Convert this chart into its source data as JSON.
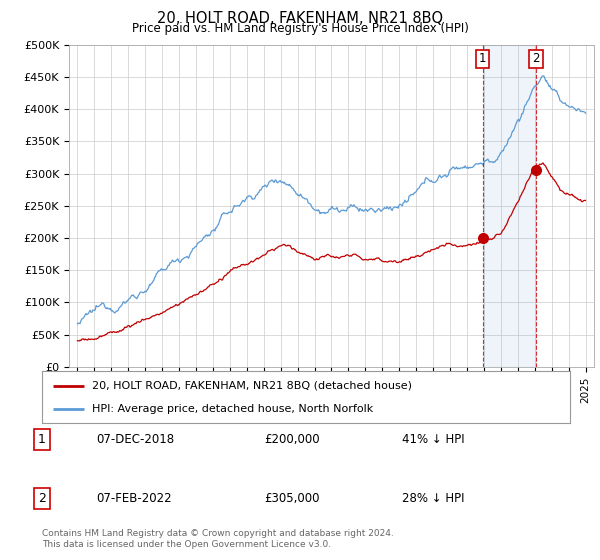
{
  "title": "20, HOLT ROAD, FAKENHAM, NR21 8BQ",
  "subtitle": "Price paid vs. HM Land Registry's House Price Index (HPI)",
  "ylim": [
    0,
    500000
  ],
  "yticks": [
    0,
    50000,
    100000,
    150000,
    200000,
    250000,
    300000,
    350000,
    400000,
    450000,
    500000
  ],
  "ytick_labels": [
    "£0",
    "£50K",
    "£100K",
    "£150K",
    "£200K",
    "£250K",
    "£300K",
    "£350K",
    "£400K",
    "£450K",
    "£500K"
  ],
  "xlim_start": 1994.5,
  "xlim_end": 2025.5,
  "hpi_color": "#5b9bd5",
  "price_color": "#c00000",
  "marker_color": "#c00000",
  "vline_color": "#cc0000",
  "sale1_x": 2018.92,
  "sale1_y": 200000,
  "sale2_x": 2022.08,
  "sale2_y": 305000,
  "legend_line1": "20, HOLT ROAD, FAKENHAM, NR21 8BQ (detached house)",
  "legend_line2": "HPI: Average price, detached house, North Norfolk",
  "table_row1_date": "07-DEC-2018",
  "table_row1_price": "£200,000",
  "table_row1_hpi": "41% ↓ HPI",
  "table_row2_date": "07-FEB-2022",
  "table_row2_price": "£305,000",
  "table_row2_hpi": "28% ↓ HPI",
  "footnote": "Contains HM Land Registry data © Crown copyright and database right 2024.\nThis data is licensed under the Open Government Licence v3.0.",
  "bg_color": "#ffffff",
  "grid_color": "#cccccc"
}
